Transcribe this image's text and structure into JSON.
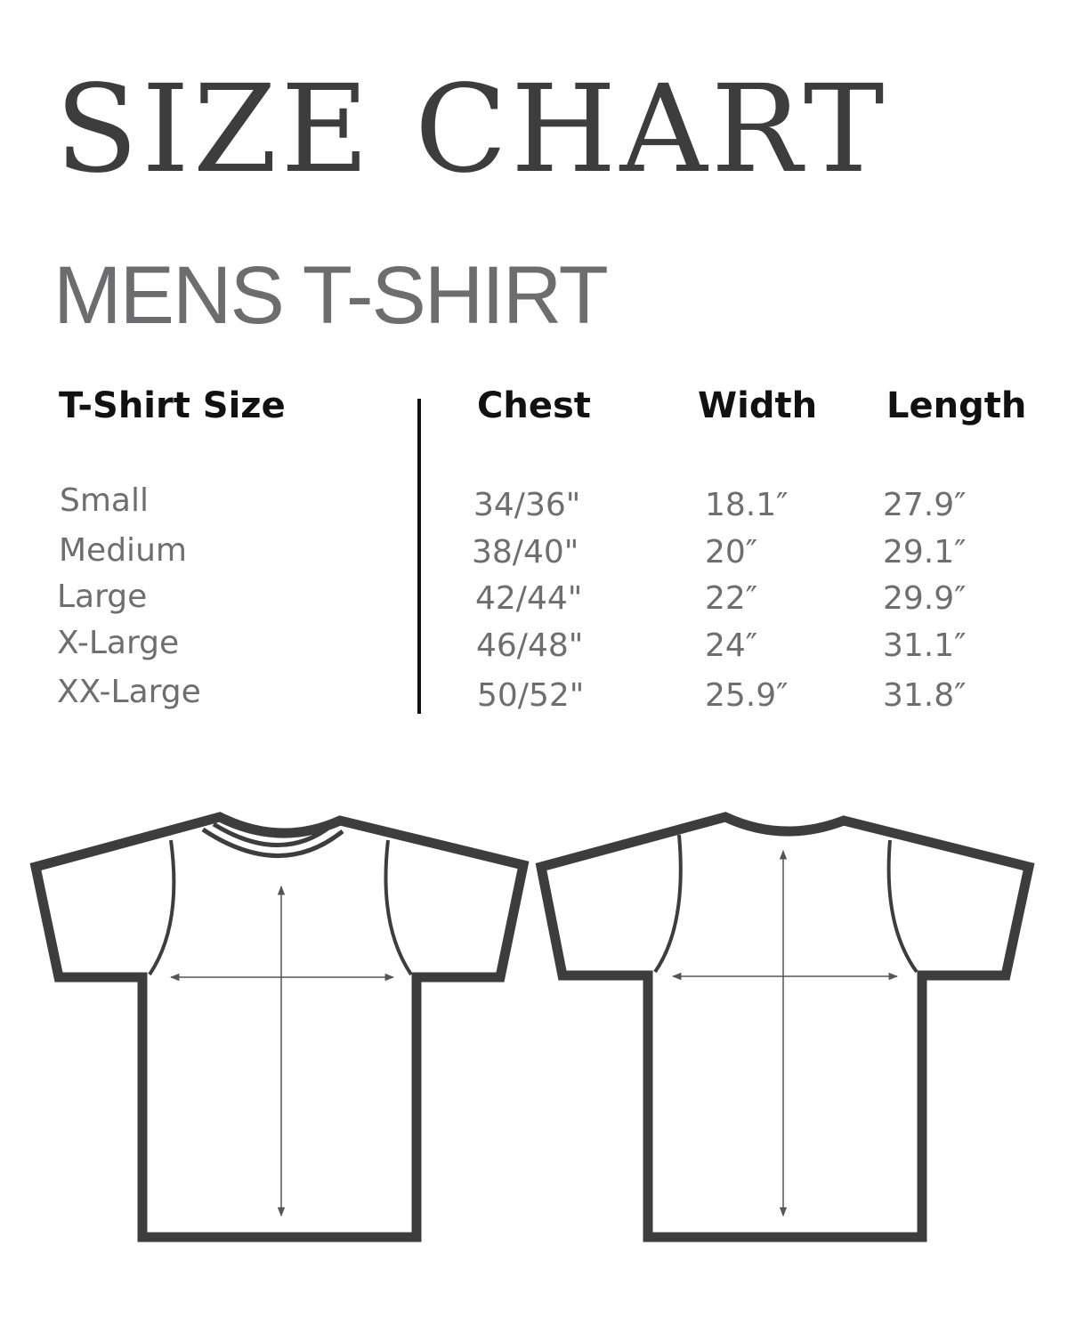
{
  "title": "SIZE CHART",
  "subtitle": "MENS T-SHIRT",
  "table": {
    "headers": [
      "T-Shirt Size",
      "Chest",
      "Width",
      "Length"
    ],
    "rows": [
      {
        "size": "Small",
        "chest": "34/36\"",
        "width": "18.1″",
        "length": "27.9″"
      },
      {
        "size": "Medium",
        "chest": "38/40\"",
        "width": "20″",
        "length": "29.1″"
      },
      {
        "size": "Large",
        "chest": "42/44\"",
        "width": "22″",
        "length": "29.9″"
      },
      {
        "size": "X-Large",
        "chest": "46/48\"",
        "width": "24″",
        "length": "31.1″"
      },
      {
        "size": "XX-Large",
        "chest": "50/52\"",
        "width": "25.9″",
        "length": "31.8″"
      }
    ]
  },
  "colors": {
    "outline": "#3d3d3d",
    "text": "#6e6e70",
    "header": "#111111"
  },
  "diagrams": [
    "tshirt-front",
    "tshirt-back"
  ]
}
